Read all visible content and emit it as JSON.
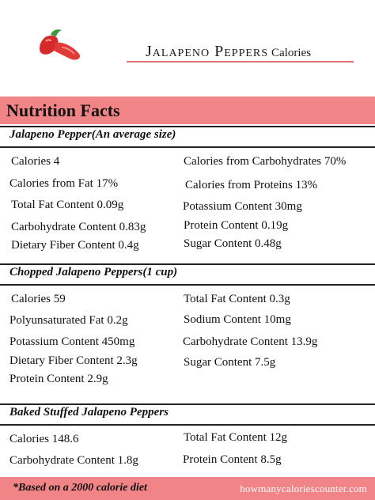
{
  "title": {
    "main": "Jalapeno Peppers",
    "sub": "Calories"
  },
  "header": "Nutrition Facts",
  "sections": [
    {
      "heading": "Jalapeno Pepper(An average size)",
      "left": [
        "Calories 4",
        "Calories from Fat 17%",
        "Total Fat Content 0.09g",
        "Carbohydrate Content 0.83g",
        "Dietary Fiber Content 0.4g"
      ],
      "right": [
        "Calories from Carbohydrates 70%",
        "Calories from Proteins 13%",
        "Potassium Content 30mg",
        "Protein Content  0.19g",
        "Sugar Content 0.48g"
      ]
    },
    {
      "heading": "Chopped Jalapeno Peppers(1 cup)",
      "left": [
        "Calories 59",
        "Polyunsaturated Fat 0.2g",
        "Potassium Content 450mg",
        "Dietary Fiber Content 2.3g",
        "Protein Content 2.9g"
      ],
      "right": [
        "Total Fat Content 0.3g",
        "Sodium Content 10mg",
        "Carbohydrate Content 13.9g",
        "Sugar Content 7.5g"
      ]
    },
    {
      "heading": "Baked Stuffed Jalapeno Peppers",
      "left": [
        "Calories 148.6",
        "Carbohydrate Content 1.8g"
      ],
      "right": [
        "Total Fat Content 12g",
        "Protein Content 8.5g"
      ]
    }
  ],
  "footer": {
    "note": "*Based on a 2000 calorie diet",
    "site": "howmanycaloriescounter.com"
  },
  "colors": {
    "band": "#f08486",
    "rule": "#e07070"
  },
  "icon": "chili-pepper-icon"
}
